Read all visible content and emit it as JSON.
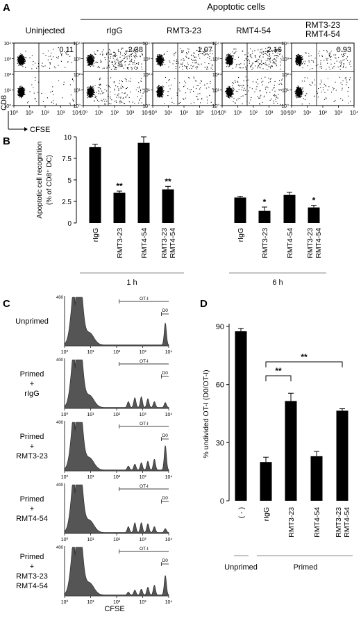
{
  "panels": {
    "A": "A",
    "B": "B",
    "C": "C",
    "D": "D"
  },
  "panel_a": {
    "group_title": "Apoptotic cells",
    "y_axis_label": "CD8",
    "x_axis_label": "CFSE",
    "plots": [
      {
        "label": "Uninjected",
        "label2": "",
        "percent": "0.11",
        "density": 0.15
      },
      {
        "label": "rIgG",
        "label2": "",
        "percent": "2.38",
        "density": 1.0
      },
      {
        "label": "RMT3-23",
        "label2": "",
        "percent": "1.07",
        "density": 0.55
      },
      {
        "label": "RMT4-54",
        "label2": "",
        "percent": "2.16",
        "density": 0.9
      },
      {
        "label": "RMT3-23",
        "label2": "RMT4-54",
        "percent": "0.93",
        "density": 0.45
      }
    ],
    "tick_labels": [
      "10⁰",
      "10¹",
      "10²",
      "10³",
      "10⁴"
    ]
  },
  "chart_data": [
    {
      "type": "bar",
      "panel": "B",
      "ylabel": "Apoptotic cell recognition",
      "ylabel2": "(% of CD8⁺ DC)",
      "ylim": [
        0,
        10
      ],
      "yticks": [
        "0",
        "2.5",
        "5",
        "7.5",
        "10"
      ],
      "groups": [
        {
          "name": "1 h",
          "bars": [
            {
              "label": "rIgG",
              "value": 8.8,
              "error": 0.35,
              "sig": ""
            },
            {
              "label": "RMT3-23",
              "value": 3.5,
              "error": 0.2,
              "sig": "**"
            },
            {
              "label": "RMT4-54",
              "value": 9.3,
              "error": 0.7,
              "sig": ""
            },
            {
              "label": "RMT3-23\nRMT4-54",
              "value": 3.9,
              "error": 0.35,
              "sig": "**"
            }
          ]
        },
        {
          "name": "6 h",
          "bars": [
            {
              "label": "rIgG",
              "value": 2.95,
              "error": 0.15,
              "sig": ""
            },
            {
              "label": "RMT3-23",
              "value": 1.4,
              "error": 0.45,
              "sig": "*"
            },
            {
              "label": "RMT4-54",
              "value": 3.25,
              "error": 0.3,
              "sig": ""
            },
            {
              "label": "RMT3-23\nRMT4-54",
              "value": 1.8,
              "error": 0.25,
              "sig": "*"
            }
          ]
        }
      ]
    },
    {
      "type": "area",
      "panel": "C",
      "xlabel": "CFSE",
      "y_max_label": "400",
      "x_tick_labels": [
        "10⁰",
        "10¹",
        "10²",
        "10³",
        "10⁴"
      ],
      "gate_labels": [
        "OT-I",
        "D0"
      ],
      "rows": [
        {
          "label_lines": [
            "Unprimed"
          ],
          "peaks": [
            0,
            0,
            0,
            0,
            0,
            0.45
          ]
        },
        {
          "label_lines": [
            "Primed",
            "+",
            "rIgG"
          ],
          "peaks": [
            0.12,
            0.2,
            0.22,
            0.18,
            0.12,
            0.1
          ]
        },
        {
          "label_lines": [
            "Primed",
            "+",
            "RMT3-23"
          ],
          "peaks": [
            0.08,
            0.12,
            0.15,
            0.18,
            0.22,
            0.5
          ]
        },
        {
          "label_lines": [
            "Primed",
            "+",
            "RMT4-54"
          ],
          "peaks": [
            0.12,
            0.2,
            0.2,
            0.18,
            0.12,
            0.08
          ]
        },
        {
          "label_lines": [
            "Primed",
            "+",
            "RMT3-23",
            "RMT4-54"
          ],
          "peaks": [
            0.06,
            0.1,
            0.12,
            0.16,
            0.2,
            0.4
          ]
        }
      ]
    },
    {
      "type": "bar",
      "panel": "D",
      "ylabel": "% undivided OT-I (D0/OT-I)",
      "ylim": [
        0,
        90
      ],
      "yticks": [
        "0",
        "30",
        "60",
        "90"
      ],
      "categories": [
        "( - )",
        "rIgG",
        "RMT3-23",
        "RMT4-54",
        "RMT3-23\nRMT4-54"
      ],
      "values": [
        87.5,
        20,
        51.5,
        23,
        46.5
      ],
      "errors": [
        1.5,
        2.5,
        4,
        2.5,
        1
      ],
      "group_labels": [
        "Unprimed",
        "Primed"
      ],
      "sig_brackets": [
        {
          "from": "rIgG",
          "to": "RMT3-23",
          "label": "**"
        },
        {
          "from": "rIgG",
          "to": "RMT3-23\nRMT4-54",
          "label": "**"
        }
      ]
    }
  ]
}
